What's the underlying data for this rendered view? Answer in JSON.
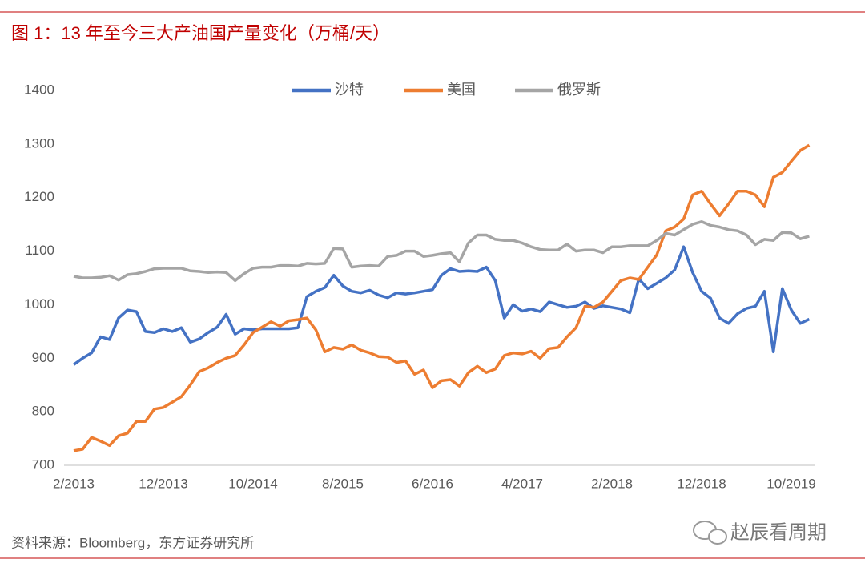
{
  "chart_data": {
    "type": "line",
    "title": "图 1：13 年至今三大产油国产量变化（万桶/天）",
    "source": "资料来源：Bloomberg，东方证券研究所",
    "watermark": "赵辰看周期",
    "categories": [
      "2/2013",
      null,
      null,
      null,
      null,
      null,
      null,
      null,
      null,
      null,
      "12/2013",
      null,
      null,
      null,
      null,
      null,
      null,
      null,
      null,
      null,
      "10/2014",
      null,
      null,
      null,
      null,
      null,
      null,
      null,
      null,
      null,
      "8/2015",
      null,
      null,
      null,
      null,
      null,
      null,
      null,
      null,
      null,
      "6/2016",
      null,
      null,
      null,
      null,
      null,
      null,
      null,
      null,
      null,
      "4/2017",
      null,
      null,
      null,
      null,
      null,
      null,
      null,
      null,
      null,
      "2/2018",
      null,
      null,
      null,
      null,
      null,
      null,
      null,
      null,
      null,
      "12/2018",
      null,
      null,
      null,
      null,
      null,
      null,
      null,
      null,
      null,
      "10/2019",
      null,
      null
    ],
    "series": [
      {
        "name": "沙特",
        "color": "#4472c4",
        "values": [
          888,
          900,
          910,
          940,
          935,
          975,
          990,
          987,
          950,
          948,
          955,
          950,
          957,
          930,
          936,
          948,
          958,
          982,
          945,
          955,
          953,
          955,
          955,
          955,
          955,
          957,
          1015,
          1025,
          1032,
          1055,
          1035,
          1025,
          1022,
          1027,
          1018,
          1013,
          1022,
          1020,
          1022,
          1025,
          1028,
          1055,
          1067,
          1062,
          1063,
          1062,
          1070,
          1045,
          975,
          1000,
          988,
          992,
          987,
          1005,
          1000,
          995,
          997,
          1005,
          993,
          998,
          995,
          992,
          985,
          1048,
          1030,
          1040,
          1050,
          1065,
          1108,
          1060,
          1025,
          1012,
          975,
          965,
          983,
          993,
          997,
          1025,
          912,
          1030,
          990,
          965,
          973
        ]
      },
      {
        "name": "美国",
        "color": "#ed7d31",
        "values": [
          727,
          730,
          752,
          745,
          737,
          755,
          760,
          782,
          782,
          805,
          808,
          818,
          828,
          850,
          875,
          882,
          892,
          900,
          905,
          925,
          948,
          958,
          968,
          960,
          970,
          972,
          975,
          953,
          912,
          920,
          917,
          925,
          915,
          910,
          903,
          902,
          892,
          895,
          870,
          878,
          845,
          858,
          860,
          848,
          873,
          885,
          873,
          880,
          905,
          910,
          908,
          913,
          900,
          918,
          920,
          940,
          957,
          997,
          995,
          1005,
          1025,
          1045,
          1050,
          1047,
          1070,
          1093,
          1138,
          1145,
          1160,
          1205,
          1212,
          1188,
          1166,
          1188,
          1212,
          1212,
          1205,
          1183,
          1238,
          1247,
          1268,
          1288,
          1298
        ]
      },
      {
        "name": "俄罗斯",
        "color": "#a5a5a5",
        "values": [
          1053,
          1050,
          1050,
          1051,
          1054,
          1046,
          1056,
          1058,
          1062,
          1067,
          1068,
          1068,
          1068,
          1063,
          1062,
          1060,
          1061,
          1060,
          1045,
          1058,
          1068,
          1070,
          1070,
          1073,
          1073,
          1072,
          1077,
          1076,
          1077,
          1105,
          1104,
          1070,
          1072,
          1073,
          1072,
          1090,
          1092,
          1100,
          1100,
          1090,
          1092,
          1095,
          1097,
          1080,
          1115,
          1130,
          1130,
          1122,
          1120,
          1120,
          1115,
          1108,
          1103,
          1102,
          1102,
          1113,
          1100,
          1102,
          1102,
          1097,
          1108,
          1108,
          1110,
          1110,
          1110,
          1120,
          1133,
          1130,
          1140,
          1150,
          1155,
          1148,
          1145,
          1140,
          1138,
          1130,
          1112,
          1122,
          1120,
          1135,
          1134,
          1123,
          1128
        ]
      }
    ],
    "ylim": [
      700,
      1400
    ],
    "yticks": [
      700,
      800,
      900,
      1000,
      1100,
      1200,
      1300,
      1400
    ],
    "grid": false,
    "legend": "top"
  }
}
